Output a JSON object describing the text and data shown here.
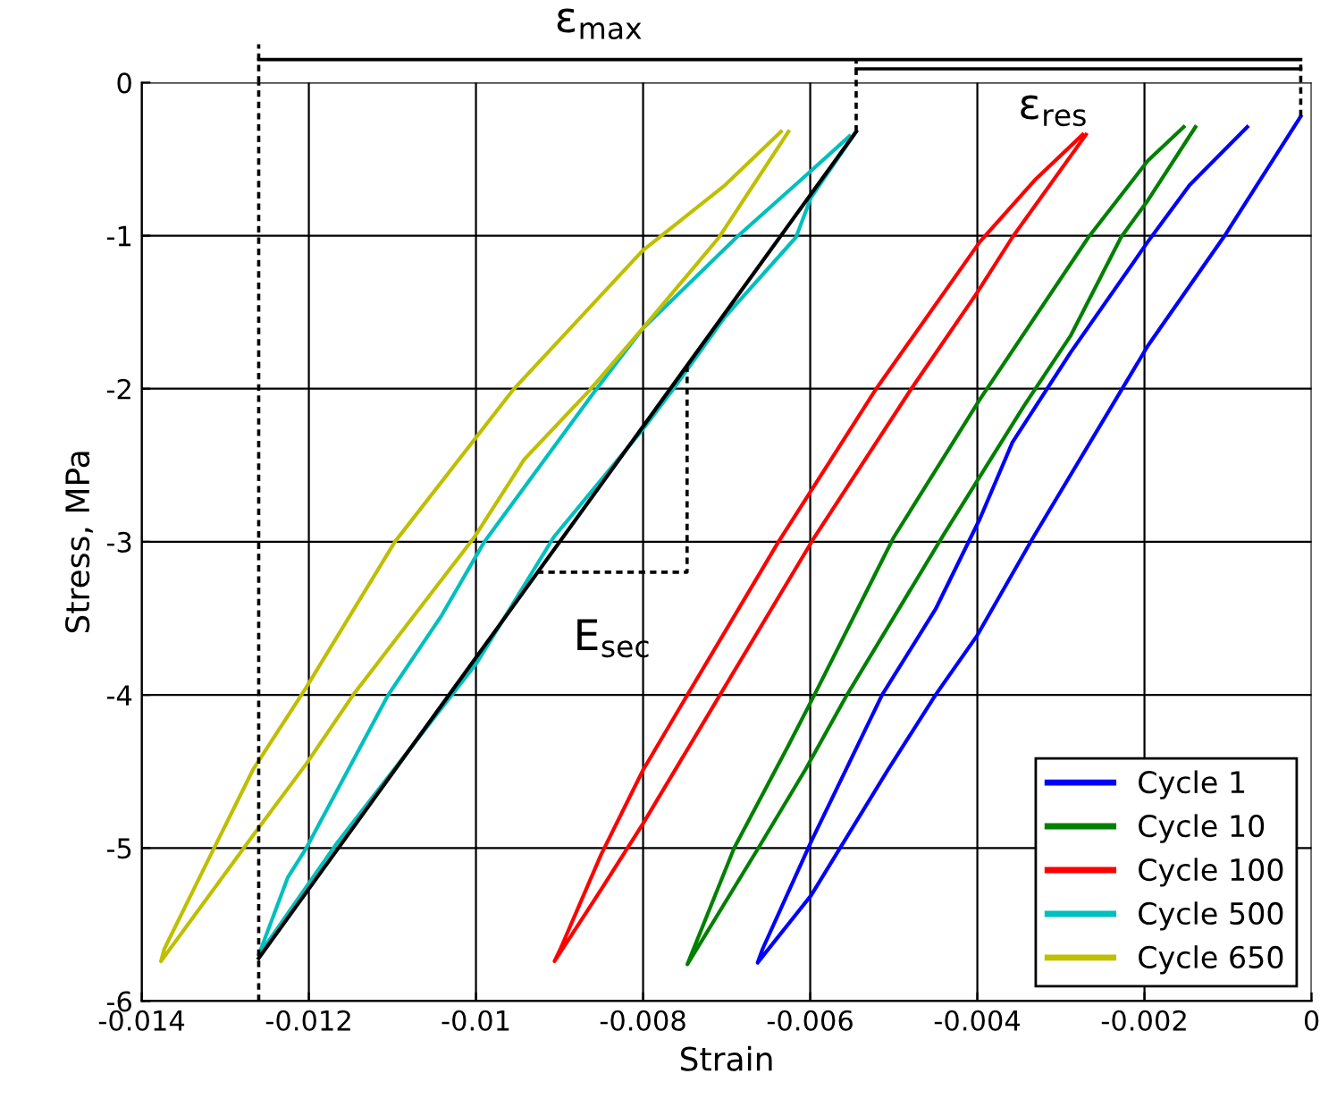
{
  "chart_data": {
    "type": "line",
    "xlabel": "Strain",
    "ylabel": "Stress, MPa",
    "xlim": [
      -0.014,
      0
    ],
    "xticks": [
      -0.014,
      -0.012,
      -0.01,
      -0.008,
      -0.006,
      -0.004,
      -0.002,
      0
    ],
    "ylim": [
      -6,
      0
    ],
    "yticks": [
      -6,
      -5,
      -4,
      -3,
      -2,
      -1,
      0
    ],
    "ref_lines": [
      {
        "axis": "x",
        "value": -0.0126,
        "line_style": "dashed",
        "color": "#000000"
      }
    ],
    "grid": true,
    "legend": "bottom right",
    "line_style": "solid",
    "annotations": [
      "ε$_{max}$",
      "ε$_{res}$",
      "E$_{sec}$"
    ],
    "series": [
      {
        "name": "Cycle 1",
        "color": "#0000ff",
        "x": [
          -0.00013,
          -0.00104,
          -0.00196,
          -0.00333,
          -0.004,
          -0.0045,
          -0.00507,
          -0.00599,
          -0.00663,
          -0.00657,
          -0.00599,
          -0.00514,
          -0.0045,
          -0.00397,
          -0.00358,
          -0.00288,
          -0.00196,
          -0.00146,
          -0.00077
        ],
        "values": [
          -0.22,
          -1.0,
          -1.72,
          -2.97,
          -3.61,
          -4.0,
          -4.49,
          -5.31,
          -5.75,
          -5.66,
          -4.96,
          -4.0,
          -3.44,
          -2.85,
          -2.35,
          -1.76,
          -1.04,
          -0.67,
          -0.29
        ]
      },
      {
        "name": "Cycle 10",
        "color": "#008000",
        "x": [
          -0.00139,
          -0.00196,
          -0.00228,
          -0.00288,
          -0.00344,
          -0.0044,
          -0.00556,
          -0.00606,
          -0.00662,
          -0.00747,
          -0.00691,
          -0.00627,
          -0.00595,
          -0.005,
          -0.00397,
          -0.00267,
          -0.00196,
          -0.00153
        ],
        "values": [
          -0.29,
          -0.77,
          -1.01,
          -1.65,
          -2.11,
          -2.95,
          -4.0,
          -4.49,
          -5.0,
          -5.76,
          -5.0,
          -4.34,
          -4.0,
          -2.97,
          -2.07,
          -1.01,
          -0.51,
          -0.29
        ]
      },
      {
        "name": "Cycle 100",
        "color": "#ff0000",
        "x": [
          -0.0027,
          -0.00358,
          -0.004,
          -0.00479,
          -0.00595,
          -0.00708,
          -0.008,
          -0.0085,
          -0.00906,
          -0.00899,
          -0.0085,
          -0.008,
          -0.00747,
          -0.00638,
          -0.00521,
          -0.00397,
          -0.0033,
          -0.00274
        ],
        "values": [
          -0.34,
          -1.01,
          -1.37,
          -2.0,
          -2.97,
          -4.0,
          -4.84,
          -5.27,
          -5.74,
          -5.66,
          -5.04,
          -4.49,
          -4.0,
          -3.0,
          -2.0,
          -1.04,
          -0.63,
          -0.34
        ]
      },
      {
        "name": "Cycle 500",
        "color": "#00bfbf",
        "x": [
          -0.00545,
          -0.00599,
          -0.00617,
          -0.00702,
          -0.00765,
          -0.00801,
          -0.00907,
          -0.00999,
          -0.01168,
          -0.0126,
          -0.01225,
          -0.01203,
          -0.01105,
          -0.01041,
          -0.0099,
          -0.00857,
          -0.00801,
          -0.00688,
          -0.0061,
          -0.00553
        ],
        "values": [
          -0.32,
          -0.75,
          -1.01,
          -1.53,
          -2.01,
          -2.27,
          -2.97,
          -3.79,
          -4.98,
          -5.7,
          -5.19,
          -5.0,
          -4.0,
          -3.48,
          -3.0,
          -2.01,
          -1.61,
          -1.01,
          -0.63,
          -0.35
        ]
      },
      {
        "name": "Cycle 650",
        "color": "#bfbf00",
        "x": [
          -0.00626,
          -0.00709,
          -0.00801,
          -0.00864,
          -0.00942,
          -0.01002,
          -0.01147,
          -0.01203,
          -0.01267,
          -0.01377,
          -0.01373,
          -0.01317,
          -0.01267,
          -0.01203,
          -0.01097,
          -0.00956,
          -0.00801,
          -0.00702,
          -0.00635
        ],
        "values": [
          -0.32,
          -1.01,
          -1.61,
          -2.01,
          -2.46,
          -2.97,
          -4.0,
          -4.45,
          -4.92,
          -5.74,
          -5.66,
          -5.04,
          -4.49,
          -3.95,
          -3.0,
          -2.01,
          -1.1,
          -0.67,
          -0.32
        ]
      },
      {
        "color": "#000000",
        "x": [
          -0.0126,
          -0.00545
        ],
        "values": [
          -5.72,
          -0.32
        ]
      }
    ]
  }
}
